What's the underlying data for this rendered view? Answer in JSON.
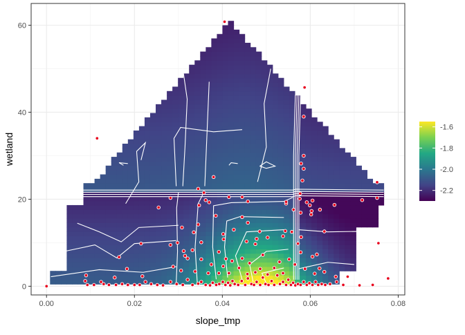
{
  "chart_data": {
    "type": "heatmap",
    "subtype": "partial-dependence surface with contour lines and scatter overlay",
    "xlabel": "slope_tmp",
    "ylabel": "wetland",
    "xlim": [
      -0.0035,
      0.0815
    ],
    "ylim": [
      -2,
      65
    ],
    "x_ticks": [
      0.0,
      0.02,
      0.04,
      0.06,
      0.08
    ],
    "x_tick_labels": [
      "0.00",
      "0.02",
      "0.04",
      "0.06",
      "0.08"
    ],
    "y_ticks": [
      0,
      20,
      40,
      60
    ],
    "y_tick_labels": [
      "0",
      "20",
      "40",
      "60"
    ],
    "grid": true,
    "theme": "bw",
    "legend": {
      "placement": "right",
      "type": "colorbar",
      "title": "",
      "ticks": [
        -1.6,
        -1.8,
        -2.0,
        -2.2
      ],
      "tick_labels": [
        "-1.6",
        "-1.8",
        "-2.0",
        "-2.2"
      ],
      "range": [
        -2.3,
        -1.55
      ]
    },
    "colorscale": "viridis",
    "colors": [
      "#440154",
      "#414487",
      "#2a788e",
      "#22a884",
      "#7ad151",
      "#fde725"
    ],
    "point_fill": "#e8001c",
    "point_outline": "#ffffff",
    "contour_color": "#ffffff",
    "surface": {
      "x_range": [
        0.0008,
        0.0767
      ],
      "y_range": [
        0.5,
        61
      ],
      "bands": [
        {
          "y": [
            0.5,
            4
          ],
          "x": [
            0.001,
            0.066
          ]
        },
        {
          "y": [
            4,
            14
          ],
          "x": [
            0.004,
            0.07
          ]
        },
        {
          "y": [
            14,
            19
          ],
          "x": [
            0.005,
            0.076
          ]
        },
        {
          "y": [
            19,
            24
          ],
          "x": [
            0.008,
            0.0767
          ]
        }
      ],
      "triangle": {
        "base_y": 24,
        "apex_y": 61,
        "left_x": 0.011,
        "right_x": 0.0745,
        "apex_x": 0.0415
      }
    },
    "points": [
      [
        0.0,
        0
      ],
      [
        0.0088,
        1.2
      ],
      [
        0.0093,
        0.3
      ],
      [
        0.0108,
        0.3
      ],
      [
        0.0124,
        1.0
      ],
      [
        0.013,
        0.5
      ],
      [
        0.0142,
        0.3
      ],
      [
        0.0158,
        0.3
      ],
      [
        0.0172,
        0.5
      ],
      [
        0.0185,
        0.3
      ],
      [
        0.02,
        0.3
      ],
      [
        0.0212,
        0.3
      ],
      [
        0.0225,
        1.0
      ],
      [
        0.0238,
        0.5
      ],
      [
        0.0252,
        0.3
      ],
      [
        0.0265,
        0.2
      ],
      [
        0.0282,
        1.0
      ],
      [
        0.0296,
        0.5
      ],
      [
        0.031,
        0.3
      ],
      [
        0.0321,
        1.5
      ],
      [
        0.0332,
        0.3
      ],
      [
        0.0345,
        0.6
      ],
      [
        0.0352,
        1.0
      ],
      [
        0.0362,
        0.3
      ],
      [
        0.0372,
        0.2
      ],
      [
        0.0378,
        0.8
      ],
      [
        0.0386,
        0.3
      ],
      [
        0.0393,
        0.5
      ],
      [
        0.0401,
        1.0
      ],
      [
        0.0407,
        0.3
      ],
      [
        0.0413,
        0.8
      ],
      [
        0.0418,
        0.2
      ],
      [
        0.0423,
        1.2
      ],
      [
        0.0428,
        0.5
      ],
      [
        0.0436,
        0.3
      ],
      [
        0.0444,
        1.2
      ],
      [
        0.0452,
        0.3
      ],
      [
        0.0458,
        1.8
      ],
      [
        0.0466,
        0.5
      ],
      [
        0.0472,
        0.3
      ],
      [
        0.0478,
        1.0
      ],
      [
        0.0486,
        0.3
      ],
      [
        0.0492,
        2.0
      ],
      [
        0.0498,
        0.5
      ],
      [
        0.0505,
        0.3
      ],
      [
        0.0512,
        1.2
      ],
      [
        0.0518,
        0.3
      ],
      [
        0.0525,
        2.5
      ],
      [
        0.0531,
        0.5
      ],
      [
        0.0538,
        1.0
      ],
      [
        0.0545,
        0.3
      ],
      [
        0.055,
        1.5
      ],
      [
        0.0556,
        0.3
      ],
      [
        0.0561,
        0.8
      ],
      [
        0.0566,
        0.2
      ],
      [
        0.0572,
        0.5
      ],
      [
        0.0578,
        0.3
      ],
      [
        0.0585,
        1.0
      ],
      [
        0.0592,
        0.3
      ],
      [
        0.0598,
        0.7
      ],
      [
        0.0605,
        0.3
      ],
      [
        0.0612,
        1.0
      ],
      [
        0.0618,
        0.3
      ],
      [
        0.0626,
        0.5
      ],
      [
        0.0634,
        0.3
      ],
      [
        0.0645,
        0.5
      ],
      [
        0.066,
        1.0
      ],
      [
        0.0675,
        0.3
      ],
      [
        0.0712,
        0.2
      ],
      [
        0.0742,
        0.3
      ],
      [
        0.009,
        2.5
      ],
      [
        0.0155,
        2.0
      ],
      [
        0.0183,
        4.0
      ],
      [
        0.0218,
        2.3
      ],
      [
        0.0288,
        4.5
      ],
      [
        0.0306,
        3.6
      ],
      [
        0.0315,
        7.0
      ],
      [
        0.0321,
        6.4
      ],
      [
        0.0332,
        8.3
      ],
      [
        0.0338,
        3.4
      ],
      [
        0.0352,
        6.2
      ],
      [
        0.0368,
        3.0
      ],
      [
        0.0375,
        5.0
      ],
      [
        0.0392,
        3.0
      ],
      [
        0.0402,
        4.6
      ],
      [
        0.0408,
        6.3
      ],
      [
        0.0415,
        3.0
      ],
      [
        0.0422,
        5.8
      ],
      [
        0.0438,
        4.2
      ],
      [
        0.0445,
        6.4
      ],
      [
        0.0457,
        2.8
      ],
      [
        0.0462,
        5.3
      ],
      [
        0.0475,
        3.2
      ],
      [
        0.0486,
        4.0
      ],
      [
        0.0492,
        7.2
      ],
      [
        0.0503,
        2.7
      ],
      [
        0.0518,
        4.2
      ],
      [
        0.053,
        5.6
      ],
      [
        0.0538,
        3.0
      ],
      [
        0.0552,
        6.2
      ],
      [
        0.0565,
        5.0
      ],
      [
        0.0578,
        7.8
      ],
      [
        0.0588,
        4.0
      ],
      [
        0.0605,
        6.8
      ],
      [
        0.061,
        2.9
      ],
      [
        0.0621,
        4.1
      ],
      [
        0.0632,
        3.3
      ],
      [
        0.0658,
        2.2
      ],
      [
        0.0685,
        2.2
      ],
      [
        0.0777,
        1.8
      ],
      [
        0.0165,
        6.7
      ],
      [
        0.0215,
        9.8
      ],
      [
        0.0282,
        9.5
      ],
      [
        0.0298,
        10.0
      ],
      [
        0.0312,
        8.1
      ],
      [
        0.0352,
        10.1
      ],
      [
        0.0392,
        7.9
      ],
      [
        0.0403,
        10.8
      ],
      [
        0.0426,
        13.0
      ],
      [
        0.0455,
        10.3
      ],
      [
        0.0475,
        9.7
      ],
      [
        0.0478,
        10.9
      ],
      [
        0.0485,
        12.6
      ],
      [
        0.0503,
        11.2
      ],
      [
        0.0538,
        11.5
      ],
      [
        0.0543,
        12.7
      ],
      [
        0.0558,
        12.5
      ],
      [
        0.0572,
        9.8
      ],
      [
        0.0579,
        11.3
      ],
      [
        0.0615,
        7.3
      ],
      [
        0.0755,
        9.9
      ],
      [
        0.0308,
        13.5
      ],
      [
        0.0335,
        12.4
      ],
      [
        0.0345,
        14.2
      ],
      [
        0.0402,
        12.0
      ],
      [
        0.0445,
        15.9
      ],
      [
        0.0458,
        14.6
      ],
      [
        0.0545,
        19.0
      ],
      [
        0.0562,
        17.6
      ],
      [
        0.0578,
        16.9
      ],
      [
        0.0592,
        19.3
      ],
      [
        0.0603,
        17.3
      ],
      [
        0.0622,
        17.6
      ],
      [
        0.0632,
        12.6
      ],
      [
        0.0545,
        19.4
      ],
      [
        0.0282,
        20.3
      ],
      [
        0.0358,
        21.5
      ],
      [
        0.0415,
        20.5
      ],
      [
        0.0445,
        20.5
      ],
      [
        0.0458,
        19.5
      ],
      [
        0.0576,
        20.1
      ],
      [
        0.0577,
        21.3
      ],
      [
        0.0599,
        18.6
      ],
      [
        0.0605,
        19.7
      ],
      [
        0.0602,
        16.5
      ],
      [
        0.0655,
        18.7
      ],
      [
        0.0385,
        16.2
      ],
      [
        0.037,
        19.3
      ],
      [
        0.0752,
        20.3
      ],
      [
        0.0718,
        19.8
      ],
      [
        0.0347,
        18.6
      ],
      [
        0.0362,
        19.8
      ],
      [
        0.0255,
        18.1
      ],
      [
        0.0345,
        22.4
      ],
      [
        0.038,
        25.1
      ],
      [
        0.0582,
        24.3
      ],
      [
        0.0585,
        27.0
      ],
      [
        0.0579,
        28.2
      ],
      [
        0.0585,
        30.0
      ],
      [
        0.0585,
        39.0
      ],
      [
        0.0587,
        45.7
      ],
      [
        0.0752,
        23.9
      ],
      [
        0.0115,
        34.0
      ],
      [
        0.0405,
        60.8
      ]
    ]
  }
}
